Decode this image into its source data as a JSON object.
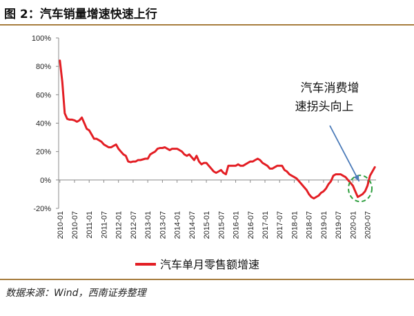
{
  "figure_title": "图 2：汽车销量增速快速上行",
  "source_text": "数据来源：Wind，西南证券整理",
  "annotation": {
    "line1": "汽车消费增",
    "line2": "速拐头向上"
  },
  "colors": {
    "series": "#e31e24",
    "arrow": "#4a7ab8",
    "circle": "#2e9e3e",
    "rule": "#a67c3d",
    "axis": "#888888"
  },
  "chart_data": {
    "type": "line",
    "title": "",
    "xlabel": "",
    "ylabel": "",
    "ylim": [
      -20,
      100
    ],
    "y_ticks": [
      -20,
      0,
      20,
      40,
      60,
      80,
      100
    ],
    "y_tick_labels": [
      "-20%",
      "0%",
      "20%",
      "40%",
      "60%",
      "80%",
      "100%"
    ],
    "x_tick_labels": [
      "2010-01",
      "2010-07",
      "2011-01",
      "2011-07",
      "2012-01",
      "2012-07",
      "2013-01",
      "2013-07",
      "2014-01",
      "2014-07",
      "2015-01",
      "2015-07",
      "2016-01",
      "2016-07",
      "2017-01",
      "2017-07",
      "2018-01",
      "2018-07",
      "2019-01",
      "2019-07",
      "2020-01",
      "2020-07"
    ],
    "legend": "bottom",
    "series": [
      {
        "name": "汽车单月零售额增速",
        "x": [
          "2010-01",
          "2010-02",
          "2010-03",
          "2010-04",
          "2010-05",
          "2010-06",
          "2010-07",
          "2010-08",
          "2010-09",
          "2010-10",
          "2010-11",
          "2010-12",
          "2011-01",
          "2011-02",
          "2011-03",
          "2011-04",
          "2011-05",
          "2011-06",
          "2011-07",
          "2011-08",
          "2011-09",
          "2011-10",
          "2011-11",
          "2011-12",
          "2012-01",
          "2012-02",
          "2012-03",
          "2012-04",
          "2012-05",
          "2012-06",
          "2012-07",
          "2012-08",
          "2012-09",
          "2012-10",
          "2012-11",
          "2012-12",
          "2013-01",
          "2013-02",
          "2013-03",
          "2013-04",
          "2013-05",
          "2013-06",
          "2013-07",
          "2013-08",
          "2013-09",
          "2013-10",
          "2013-11",
          "2013-12",
          "2014-01",
          "2014-02",
          "2014-03",
          "2014-04",
          "2014-05",
          "2014-06",
          "2014-07",
          "2014-08",
          "2014-09",
          "2014-10",
          "2014-11",
          "2014-12",
          "2015-01",
          "2015-02",
          "2015-03",
          "2015-04",
          "2015-05",
          "2015-06",
          "2015-07",
          "2015-08",
          "2015-09",
          "2015-10",
          "2015-11",
          "2015-12",
          "2016-01",
          "2016-02",
          "2016-03",
          "2016-04",
          "2016-05",
          "2016-06",
          "2016-07",
          "2016-08",
          "2016-09",
          "2016-10",
          "2016-11",
          "2016-12",
          "2017-01",
          "2017-02",
          "2017-03",
          "2017-04",
          "2017-05",
          "2017-06",
          "2017-07",
          "2017-08",
          "2017-09",
          "2017-10",
          "2017-11",
          "2017-12",
          "2018-01",
          "2018-02",
          "2018-03",
          "2018-04",
          "2018-05",
          "2018-06",
          "2018-07",
          "2018-08",
          "2018-09",
          "2018-10",
          "2018-11",
          "2018-12",
          "2019-01",
          "2019-02",
          "2019-03",
          "2019-04",
          "2019-05",
          "2019-06",
          "2019-07",
          "2019-08",
          "2019-09",
          "2019-10",
          "2019-11",
          "2019-12",
          "2020-01",
          "2020-02",
          "2020-03",
          "2020-04",
          "2020-05",
          "2020-06",
          "2020-07",
          "2020-08",
          "2020-09",
          "2020-10"
        ],
        "values": [
          84,
          69,
          47,
          43,
          42.5,
          42.5,
          42,
          41,
          42,
          44,
          40,
          36,
          35,
          32,
          29,
          29,
          28,
          27,
          25,
          24,
          23,
          23,
          24,
          25,
          22,
          20,
          18,
          17,
          13,
          12.5,
          13,
          13,
          14,
          14,
          14.5,
          15,
          15,
          18,
          19,
          20,
          22,
          22.5,
          22.5,
          23,
          22,
          21,
          22,
          22,
          22,
          21,
          20,
          18,
          17,
          18,
          16,
          14,
          17,
          13,
          11,
          12,
          12,
          10,
          8,
          6,
          5,
          6,
          7,
          5,
          4,
          10,
          10,
          10,
          10,
          11,
          10,
          10,
          11,
          12,
          13,
          13,
          14,
          15,
          14,
          12,
          11,
          10,
          8,
          8,
          9,
          10,
          10,
          10,
          7,
          6,
          4,
          3,
          2,
          1,
          -1,
          -3,
          -5,
          -7,
          -10,
          -12,
          -13,
          -12,
          -11,
          -9,
          -8,
          -6,
          -3,
          -1,
          3,
          4,
          4,
          4,
          3,
          2,
          0,
          -2,
          -4,
          -8,
          -12,
          -11,
          -10,
          -8,
          -4,
          3,
          6,
          9
        ]
      }
    ]
  }
}
